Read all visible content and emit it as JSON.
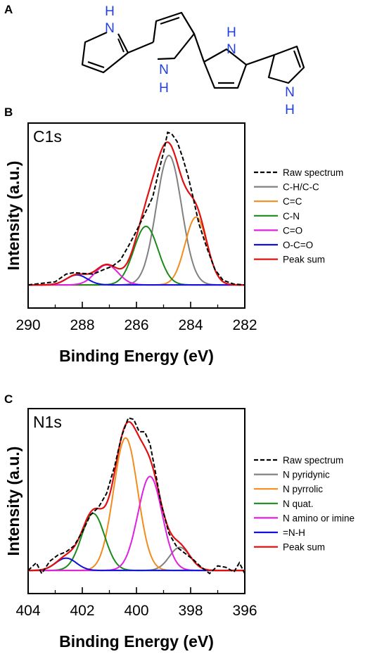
{
  "panel_labels": {
    "a": "A",
    "b": "B",
    "c": "C"
  },
  "molecule": {
    "nh_labels": [
      "N",
      "H",
      "N",
      "H",
      "N",
      "H",
      "N",
      "H"
    ],
    "colors": {
      "bond": "#000000",
      "heteroatom": "#1f3fdc"
    }
  },
  "chart_data": [
    {
      "type": "line",
      "panel": "B",
      "inset_label": "C1s",
      "xlabel": "Binding Energy (eV)",
      "ylabel": "Intensity (a.u.)",
      "xlim": [
        290,
        282
      ],
      "x_reversed": true,
      "x_ticks": [
        "290",
        "288",
        "286",
        "284",
        "282"
      ],
      "ylim": [
        -0.15,
        1.05
      ],
      "legend_position": "right",
      "raw": {
        "name": "Raw spectrum",
        "color": "#000000",
        "style": "dashed",
        "points": [
          [
            290,
            0.0
          ],
          [
            289.5,
            0.01
          ],
          [
            289,
            0.02
          ],
          [
            288.6,
            0.07
          ],
          [
            288.3,
            0.08
          ],
          [
            288,
            0.075
          ],
          [
            287.6,
            0.07
          ],
          [
            287.2,
            0.1
          ],
          [
            286.9,
            0.12
          ],
          [
            286.6,
            0.16
          ],
          [
            286.3,
            0.25
          ],
          [
            286,
            0.35
          ],
          [
            285.7,
            0.46
          ],
          [
            285.4,
            0.57
          ],
          [
            285.2,
            0.72
          ],
          [
            285,
            0.86
          ],
          [
            284.85,
            0.99
          ],
          [
            284.7,
            0.98
          ],
          [
            284.5,
            0.93
          ],
          [
            284.3,
            0.83
          ],
          [
            284.1,
            0.71
          ],
          [
            283.9,
            0.56
          ],
          [
            283.7,
            0.4
          ],
          [
            283.4,
            0.24
          ],
          [
            283.1,
            0.1
          ],
          [
            282.8,
            0.03
          ],
          [
            282.4,
            0.005
          ],
          [
            282,
            0.0
          ]
        ]
      },
      "components": [
        {
          "name": "C-H/C-C",
          "color": "#808080",
          "center": 284.8,
          "height": 0.84,
          "fwhm": 1.1
        },
        {
          "name": "C=C",
          "color": "#f28c1e",
          "center": 283.8,
          "height": 0.44,
          "fwhm": 0.95
        },
        {
          "name": "C-N",
          "color": "#1a8a1a",
          "center": 285.65,
          "height": 0.38,
          "fwhm": 1.05
        },
        {
          "name": "C=O",
          "color": "#e020e0",
          "center": 287.1,
          "height": 0.13,
          "fwhm": 1.0
        },
        {
          "name": "O-C=O",
          "color": "#1010dd",
          "center": 288.2,
          "height": 0.065,
          "fwhm": 0.9
        }
      ],
      "sum": {
        "name": "Peak sum",
        "color": "#e01010"
      }
    },
    {
      "type": "line",
      "panel": "C",
      "inset_label": "N1s",
      "xlabel": "Binding Energy (eV)",
      "ylabel": "Intensity (a.u.)",
      "xlim": [
        404,
        396
      ],
      "x_reversed": true,
      "x_ticks": [
        "404",
        "402",
        "400",
        "398",
        "396"
      ],
      "ylim": [
        -0.15,
        1.05
      ],
      "legend_position": "right",
      "raw": {
        "name": "Raw spectrum",
        "color": "#000000",
        "style": "dashed",
        "points": [
          [
            404,
            0.0
          ],
          [
            403.7,
            0.05
          ],
          [
            403.5,
            -0.02
          ],
          [
            403.2,
            0.06
          ],
          [
            402.9,
            0.1
          ],
          [
            402.6,
            0.12
          ],
          [
            402.3,
            0.16
          ],
          [
            402,
            0.25
          ],
          [
            401.7,
            0.36
          ],
          [
            401.4,
            0.41
          ],
          [
            401.1,
            0.5
          ],
          [
            400.8,
            0.68
          ],
          [
            400.55,
            0.87
          ],
          [
            400.3,
            0.99
          ],
          [
            400.1,
            0.98
          ],
          [
            399.9,
            0.9
          ],
          [
            399.7,
            0.9
          ],
          [
            399.5,
            0.82
          ],
          [
            399.3,
            0.64
          ],
          [
            399.1,
            0.44
          ],
          [
            398.8,
            0.24
          ],
          [
            398.5,
            0.15
          ],
          [
            398.2,
            0.11
          ],
          [
            397.9,
            0.07
          ],
          [
            397.6,
            0.02
          ],
          [
            397.3,
            -0.02
          ],
          [
            397,
            0.03
          ],
          [
            396.7,
            0.02
          ],
          [
            396.4,
            -0.01
          ],
          [
            396.2,
            0.05
          ],
          [
            396,
            -0.02
          ]
        ]
      },
      "components": [
        {
          "name": "N pyridynic",
          "color": "#808080",
          "center": 398.4,
          "height": 0.15,
          "fwhm": 0.9
        },
        {
          "name": "N pyrrolic",
          "color": "#f28c1e",
          "center": 400.4,
          "height": 0.86,
          "fwhm": 1.05
        },
        {
          "name": "N quat.",
          "color": "#1a8a1a",
          "center": 401.6,
          "height": 0.37,
          "fwhm": 1.0
        },
        {
          "name": "N amino or imine",
          "color": "#e020e0",
          "center": 399.5,
          "height": 0.61,
          "fwhm": 1.05
        },
        {
          "name": "=N-H",
          "color": "#1010dd",
          "center": 402.6,
          "height": 0.08,
          "fwhm": 0.9
        }
      ],
      "sum": {
        "name": "Peak sum",
        "color": "#e01010"
      }
    }
  ]
}
